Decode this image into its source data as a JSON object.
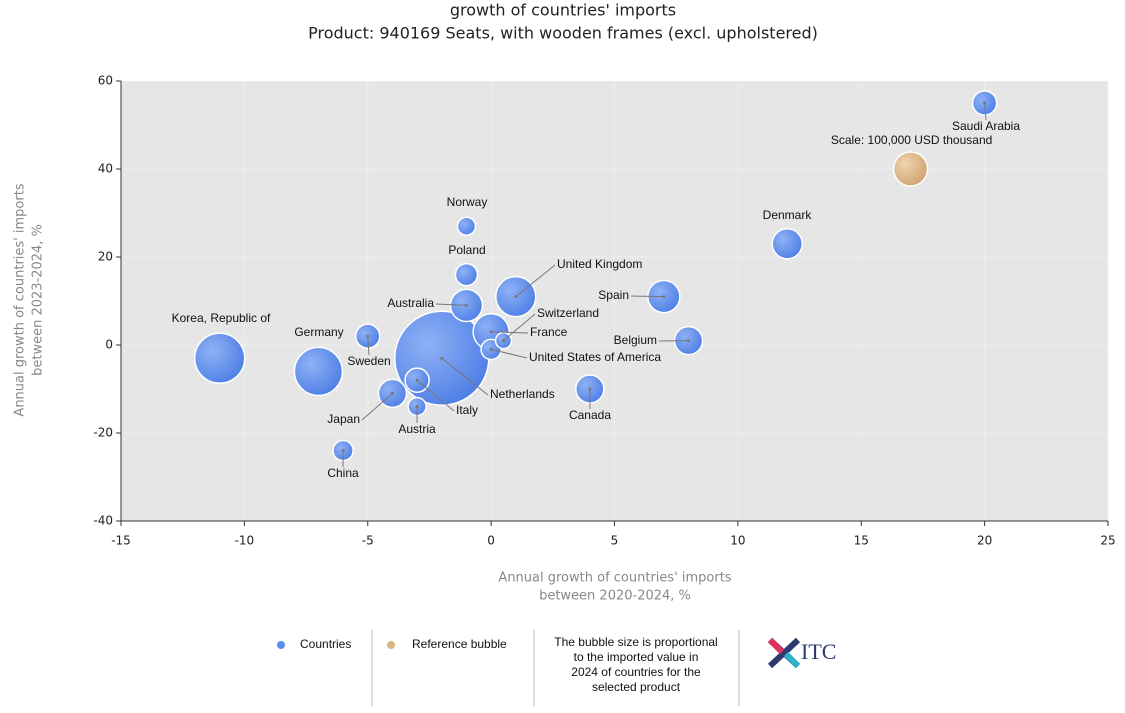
{
  "chart_data": {
    "type": "bubble",
    "title": "growth of countries' imports",
    "subtitle": "Product: 940169 Seats, with wooden frames (excl. upholstered)",
    "xlabel": [
      "Annual growth of countries' imports",
      "between 2020-2024, %"
    ],
    "ylabel": [
      "Annual growth of countries' imports",
      "between 2023-2024, %"
    ],
    "xlim": [
      -15,
      25
    ],
    "xticks": [
      -15,
      -10,
      -5,
      0,
      5,
      10,
      15,
      20,
      25
    ],
    "ylim": [
      -40,
      60
    ],
    "yticks": [
      -40,
      -20,
      0,
      20,
      40,
      60
    ],
    "grid": true,
    "series": [
      {
        "name": "Countries",
        "color": "#5d8ded",
        "labels": [
          "Saudi Arabia",
          "Denmark",
          "Norway",
          "Poland",
          "United Kingdom",
          "Spain",
          "Australia",
          "France",
          "Switzerland",
          "United States of America",
          "Belgium",
          "Germany",
          "Sweden",
          "Korea, Republic of",
          "Netherlands",
          "Japan",
          "Italy",
          "Austria",
          "Canada",
          "China"
        ],
        "x": [
          20,
          12,
          -1,
          -1,
          1,
          7,
          -1,
          0,
          0.5,
          0,
          8,
          -7,
          -5,
          -11,
          -2,
          -4,
          -3,
          -3,
          4,
          -6
        ],
        "y": [
          55,
          23,
          27,
          16,
          11,
          11,
          9,
          3,
          1,
          -1,
          1,
          -6,
          2,
          -3,
          -3,
          -11,
          -8,
          -14,
          -10,
          -24
        ],
        "sizes": [
          50000,
          78000,
          28000,
          42000,
          138000,
          89000,
          89000,
          112000,
          22000,
          35000,
          68000,
          199000,
          50000,
          216000,
          764000,
          68000,
          50000,
          28000,
          68000,
          35000
        ]
      },
      {
        "name": "Reference bubble",
        "color": "#dcb583",
        "x": [
          17
        ],
        "y": [
          40
        ],
        "sizes": [
          100000
        ]
      }
    ],
    "annotation": "Scale: 100,000 USD thousand",
    "note": [
      "The bubble size is proportional",
      "to the imported value in",
      "2024 of countries for the",
      "selected product"
    ],
    "logo": "ITC"
  }
}
